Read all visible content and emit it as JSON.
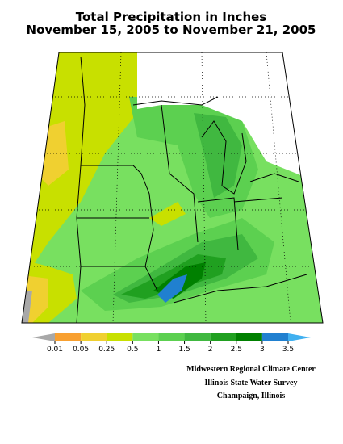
{
  "title": [
    "Total Precipitation in Inches",
    "November 15, 2005 to November 21, 2005"
  ],
  "legend": {
    "labels": [
      "0.01",
      "0.05",
      "0.25",
      "0.5",
      "1",
      "1.5",
      "2",
      "2.5",
      "3",
      "3.5"
    ],
    "colors": [
      "#a8a8a8",
      "#f8a030",
      "#f0d030",
      "#c8e000",
      "#78e060",
      "#5cd050",
      "#40b840",
      "#20a020",
      "#008000",
      "#2080d0",
      "#40b0f0"
    ]
  },
  "credits": [
    "Midwestern Regional Climate Center",
    "Illinois State Water Survey",
    "Champaign, Illinois"
  ]
}
